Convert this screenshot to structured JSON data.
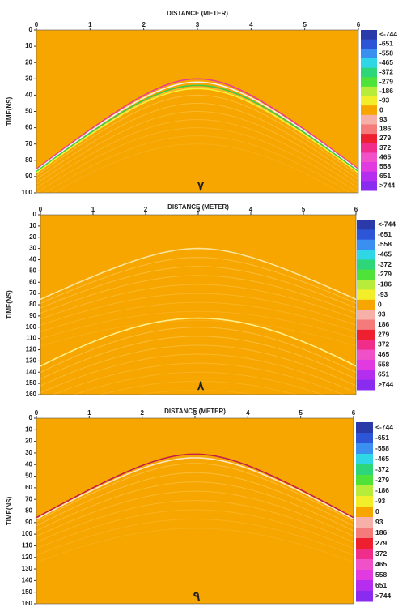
{
  "chart_data": [
    {
      "type": "radargram",
      "title": "DISTANCE (METER)",
      "ylabel": "TIME(NS)",
      "panel_label": "٧",
      "xlim": [
        0,
        6
      ],
      "xticks": [
        0,
        1,
        2,
        3,
        4,
        5,
        6
      ],
      "ylim": [
        0,
        100
      ],
      "yticks": [
        0,
        10,
        20,
        30,
        40,
        50,
        60,
        70,
        80,
        90,
        100
      ],
      "background": "#f7a600",
      "reflections": [
        {
          "x": 3,
          "t": 30,
          "velocity": 0.075,
          "colors": [
            "#e8408f",
            "#f3f0f0",
            "#3dcc45",
            "#f5f03a"
          ]
        }
      ],
      "colorbar": {
        "ticks": [
          {
            "value": -744,
            "label": "<-744"
          },
          -651,
          -558,
          -465,
          -372,
          -279,
          -186,
          -93,
          0,
          93,
          186,
          279,
          372,
          465,
          558,
          651,
          {
            "value": 744,
            "label": ">744"
          }
        ],
        "colors": [
          "#2a3aa8",
          "#2c55d8",
          "#3b8ff0",
          "#2fd6e6",
          "#2ed67a",
          "#4fe33a",
          "#b8ec3a",
          "#f3ee2a",
          "#f7a600",
          "#f6b0a8",
          "#f57a7a",
          "#ee2030",
          "#f02d8a",
          "#f050c8",
          "#e03ae0",
          "#b52ef0",
          "#8a2cf0"
        ]
      }
    },
    {
      "type": "radargram",
      "title": "DISTANCE (METER)",
      "ylabel": "TIME(NS)",
      "panel_label": "٨",
      "xlim": [
        0,
        6
      ],
      "xticks": [
        0,
        1,
        2,
        3,
        4,
        5,
        6
      ],
      "ylim": [
        0,
        160
      ],
      "yticks": [
        0,
        10,
        20,
        30,
        40,
        50,
        60,
        70,
        80,
        90,
        100,
        110,
        120,
        130,
        140,
        150,
        160
      ],
      "background": "#f7a600",
      "reflections": [
        {
          "x": 3,
          "t": 30,
          "velocity": 0.087,
          "colors": [
            "#fbe39a"
          ]
        },
        {
          "x": 3,
          "t": 92,
          "velocity": 0.061,
          "colors": [
            "#fff08a"
          ]
        }
      ],
      "colorbar": {
        "ticks": [
          {
            "value": -744,
            "label": "<-744"
          },
          -651,
          -558,
          -465,
          -372,
          -279,
          -186,
          -93,
          0,
          93,
          186,
          279,
          372,
          465,
          558,
          651,
          {
            "value": 744,
            "label": ">744"
          }
        ],
        "colors": [
          "#2a3aa8",
          "#2c55d8",
          "#3b8ff0",
          "#2fd6e6",
          "#2ed67a",
          "#4fe33a",
          "#b8ec3a",
          "#f3ee2a",
          "#f7a600",
          "#f6b0a8",
          "#f57a7a",
          "#ee2030",
          "#f02d8a",
          "#f050c8",
          "#e03ae0",
          "#b52ef0",
          "#8a2cf0"
        ]
      }
    },
    {
      "type": "radargram",
      "title": "DISTANCE (METER)",
      "ylabel": "TIME(NS)",
      "panel_label": "٩",
      "xlim": [
        0,
        6
      ],
      "xticks": [
        0,
        1,
        2,
        3,
        4,
        5,
        6
      ],
      "ylim": [
        0,
        160
      ],
      "yticks": [
        0,
        10,
        20,
        30,
        40,
        50,
        60,
        70,
        80,
        90,
        100,
        110,
        120,
        130,
        140,
        150,
        160
      ],
      "background": "#f7a600",
      "reflections": [
        {
          "x": 3,
          "t": 31,
          "velocity": 0.075,
          "colors": [
            "#c0204a",
            "#fbe6c0"
          ]
        }
      ],
      "colorbar": {
        "ticks": [
          {
            "value": -744,
            "label": "<-744"
          },
          -651,
          -558,
          -465,
          -372,
          -279,
          -186,
          -93,
          0,
          93,
          186,
          279,
          372,
          465,
          558,
          651,
          {
            "value": 744,
            "label": ">744"
          }
        ],
        "colors": [
          "#2a3aa8",
          "#2c55d8",
          "#3b8ff0",
          "#2fd6e6",
          "#2ed67a",
          "#4fe33a",
          "#b8ec3a",
          "#f3ee2a",
          "#f7a600",
          "#f6b0a8",
          "#f57a7a",
          "#ee2030",
          "#f02d8a",
          "#f050c8",
          "#e03ae0",
          "#b52ef0",
          "#8a2cf0"
        ]
      }
    }
  ]
}
